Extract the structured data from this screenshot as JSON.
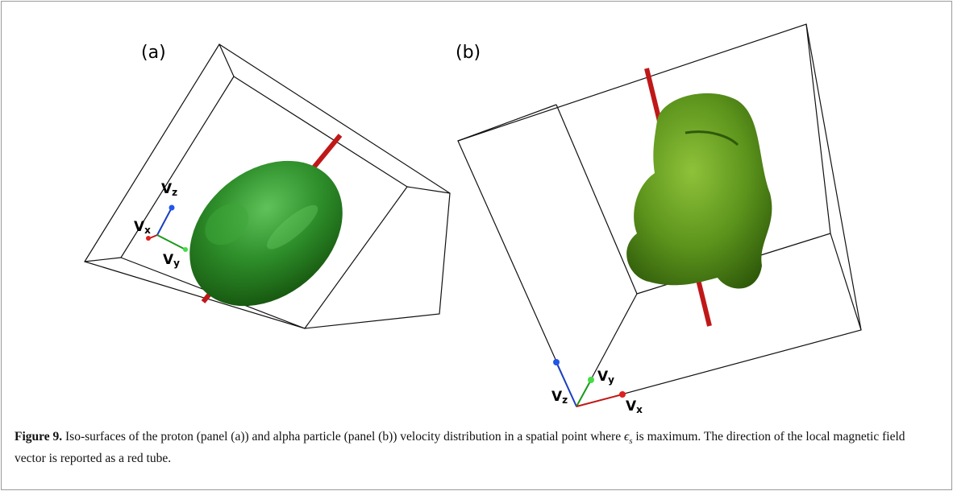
{
  "panels": {
    "a": {
      "label": "(a)",
      "axes": {
        "z": {
          "base": "V",
          "sub": "z"
        },
        "x": {
          "base": "V",
          "sub": "x"
        },
        "y": {
          "base": "V",
          "sub": "y"
        }
      }
    },
    "b": {
      "label": "(b)",
      "axes": {
        "z": {
          "base": "V",
          "sub": "z"
        },
        "x": {
          "base": "V",
          "sub": "x"
        },
        "y": {
          "base": "V",
          "sub": "y"
        }
      }
    }
  },
  "caption": {
    "label": "Figure 9.",
    "text": "Iso-surfaces of the proton (panel (a)) and alpha particle (panel (b)) velocity distribution in a spatial point where",
    "math": {
      "symbol": "ϵ",
      "sub": "s"
    },
    "text_after": "is maximum. The direction of the local magnetic field vector is reported as a red tube."
  }
}
